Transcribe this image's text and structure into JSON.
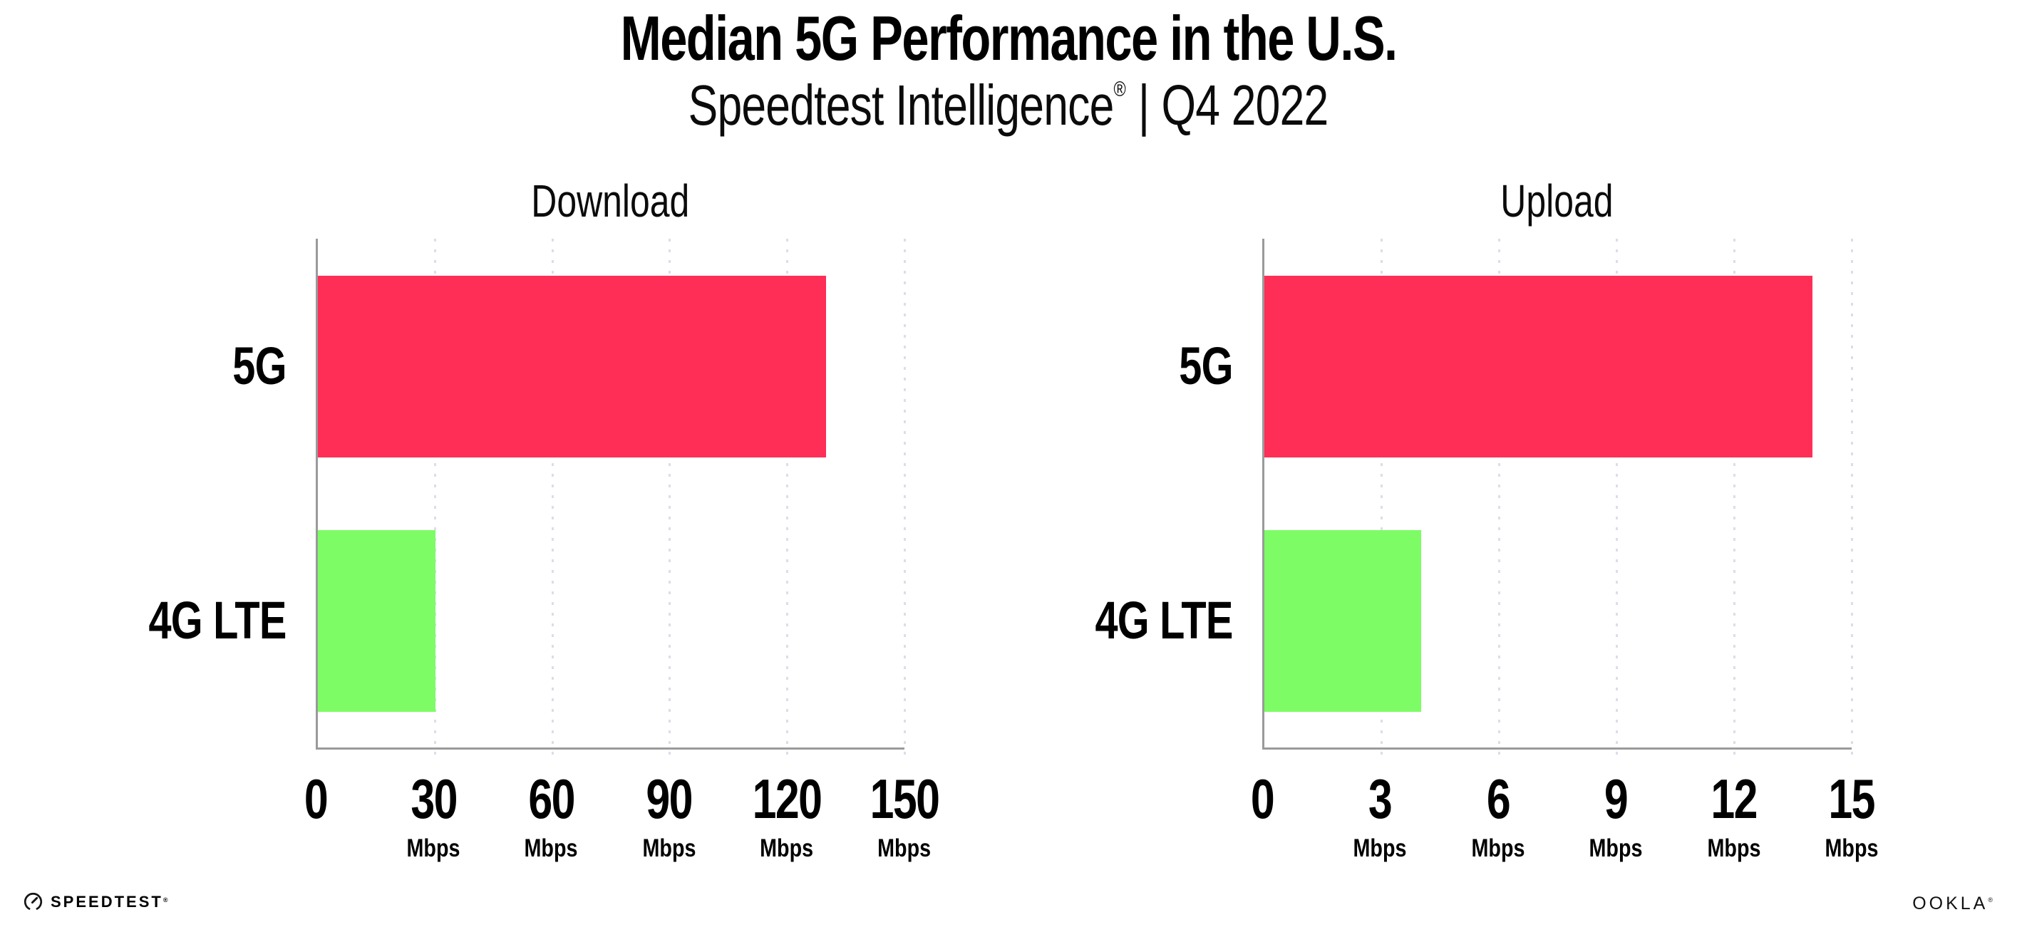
{
  "header": {
    "title": "Median 5G Performance in the U.S.",
    "subtitle_brand": "Speedtest Intelligence",
    "subtitle_reg": "®",
    "subtitle_separator": "|",
    "subtitle_period": "Q4 2022"
  },
  "colors": {
    "bar_5g": "#ff2e56",
    "bar_4g_lte": "#7dfc66",
    "gridline": "#dedcea",
    "axis": "#9a9a9a",
    "text": "#000000"
  },
  "chart_data": [
    {
      "type": "bar",
      "orientation": "horizontal",
      "title": "Download",
      "unit": "Mbps",
      "categories": [
        "5G",
        "4G LTE"
      ],
      "values": [
        130,
        30
      ],
      "xlim": [
        0,
        150
      ],
      "xticks": [
        0,
        30,
        60,
        90,
        120,
        150
      ],
      "series_colors": [
        "#ff2e56",
        "#7dfc66"
      ],
      "grid": "vertical-dotted",
      "legend": "none"
    },
    {
      "type": "bar",
      "orientation": "horizontal",
      "title": "Upload",
      "unit": "Mbps",
      "categories": [
        "5G",
        "4G LTE"
      ],
      "values": [
        14,
        4
      ],
      "xlim": [
        0,
        15
      ],
      "xticks": [
        0,
        3,
        6,
        9,
        12,
        15
      ],
      "series_colors": [
        "#ff2e56",
        "#7dfc66"
      ],
      "grid": "vertical-dotted",
      "legend": "none"
    }
  ],
  "footer": {
    "speedtest_icon": "speedtest-gauge-icon",
    "speedtest_label": "SPEEDTEST",
    "speedtest_reg": "®",
    "ookla_label": "OOKLA",
    "ookla_reg": "®"
  }
}
